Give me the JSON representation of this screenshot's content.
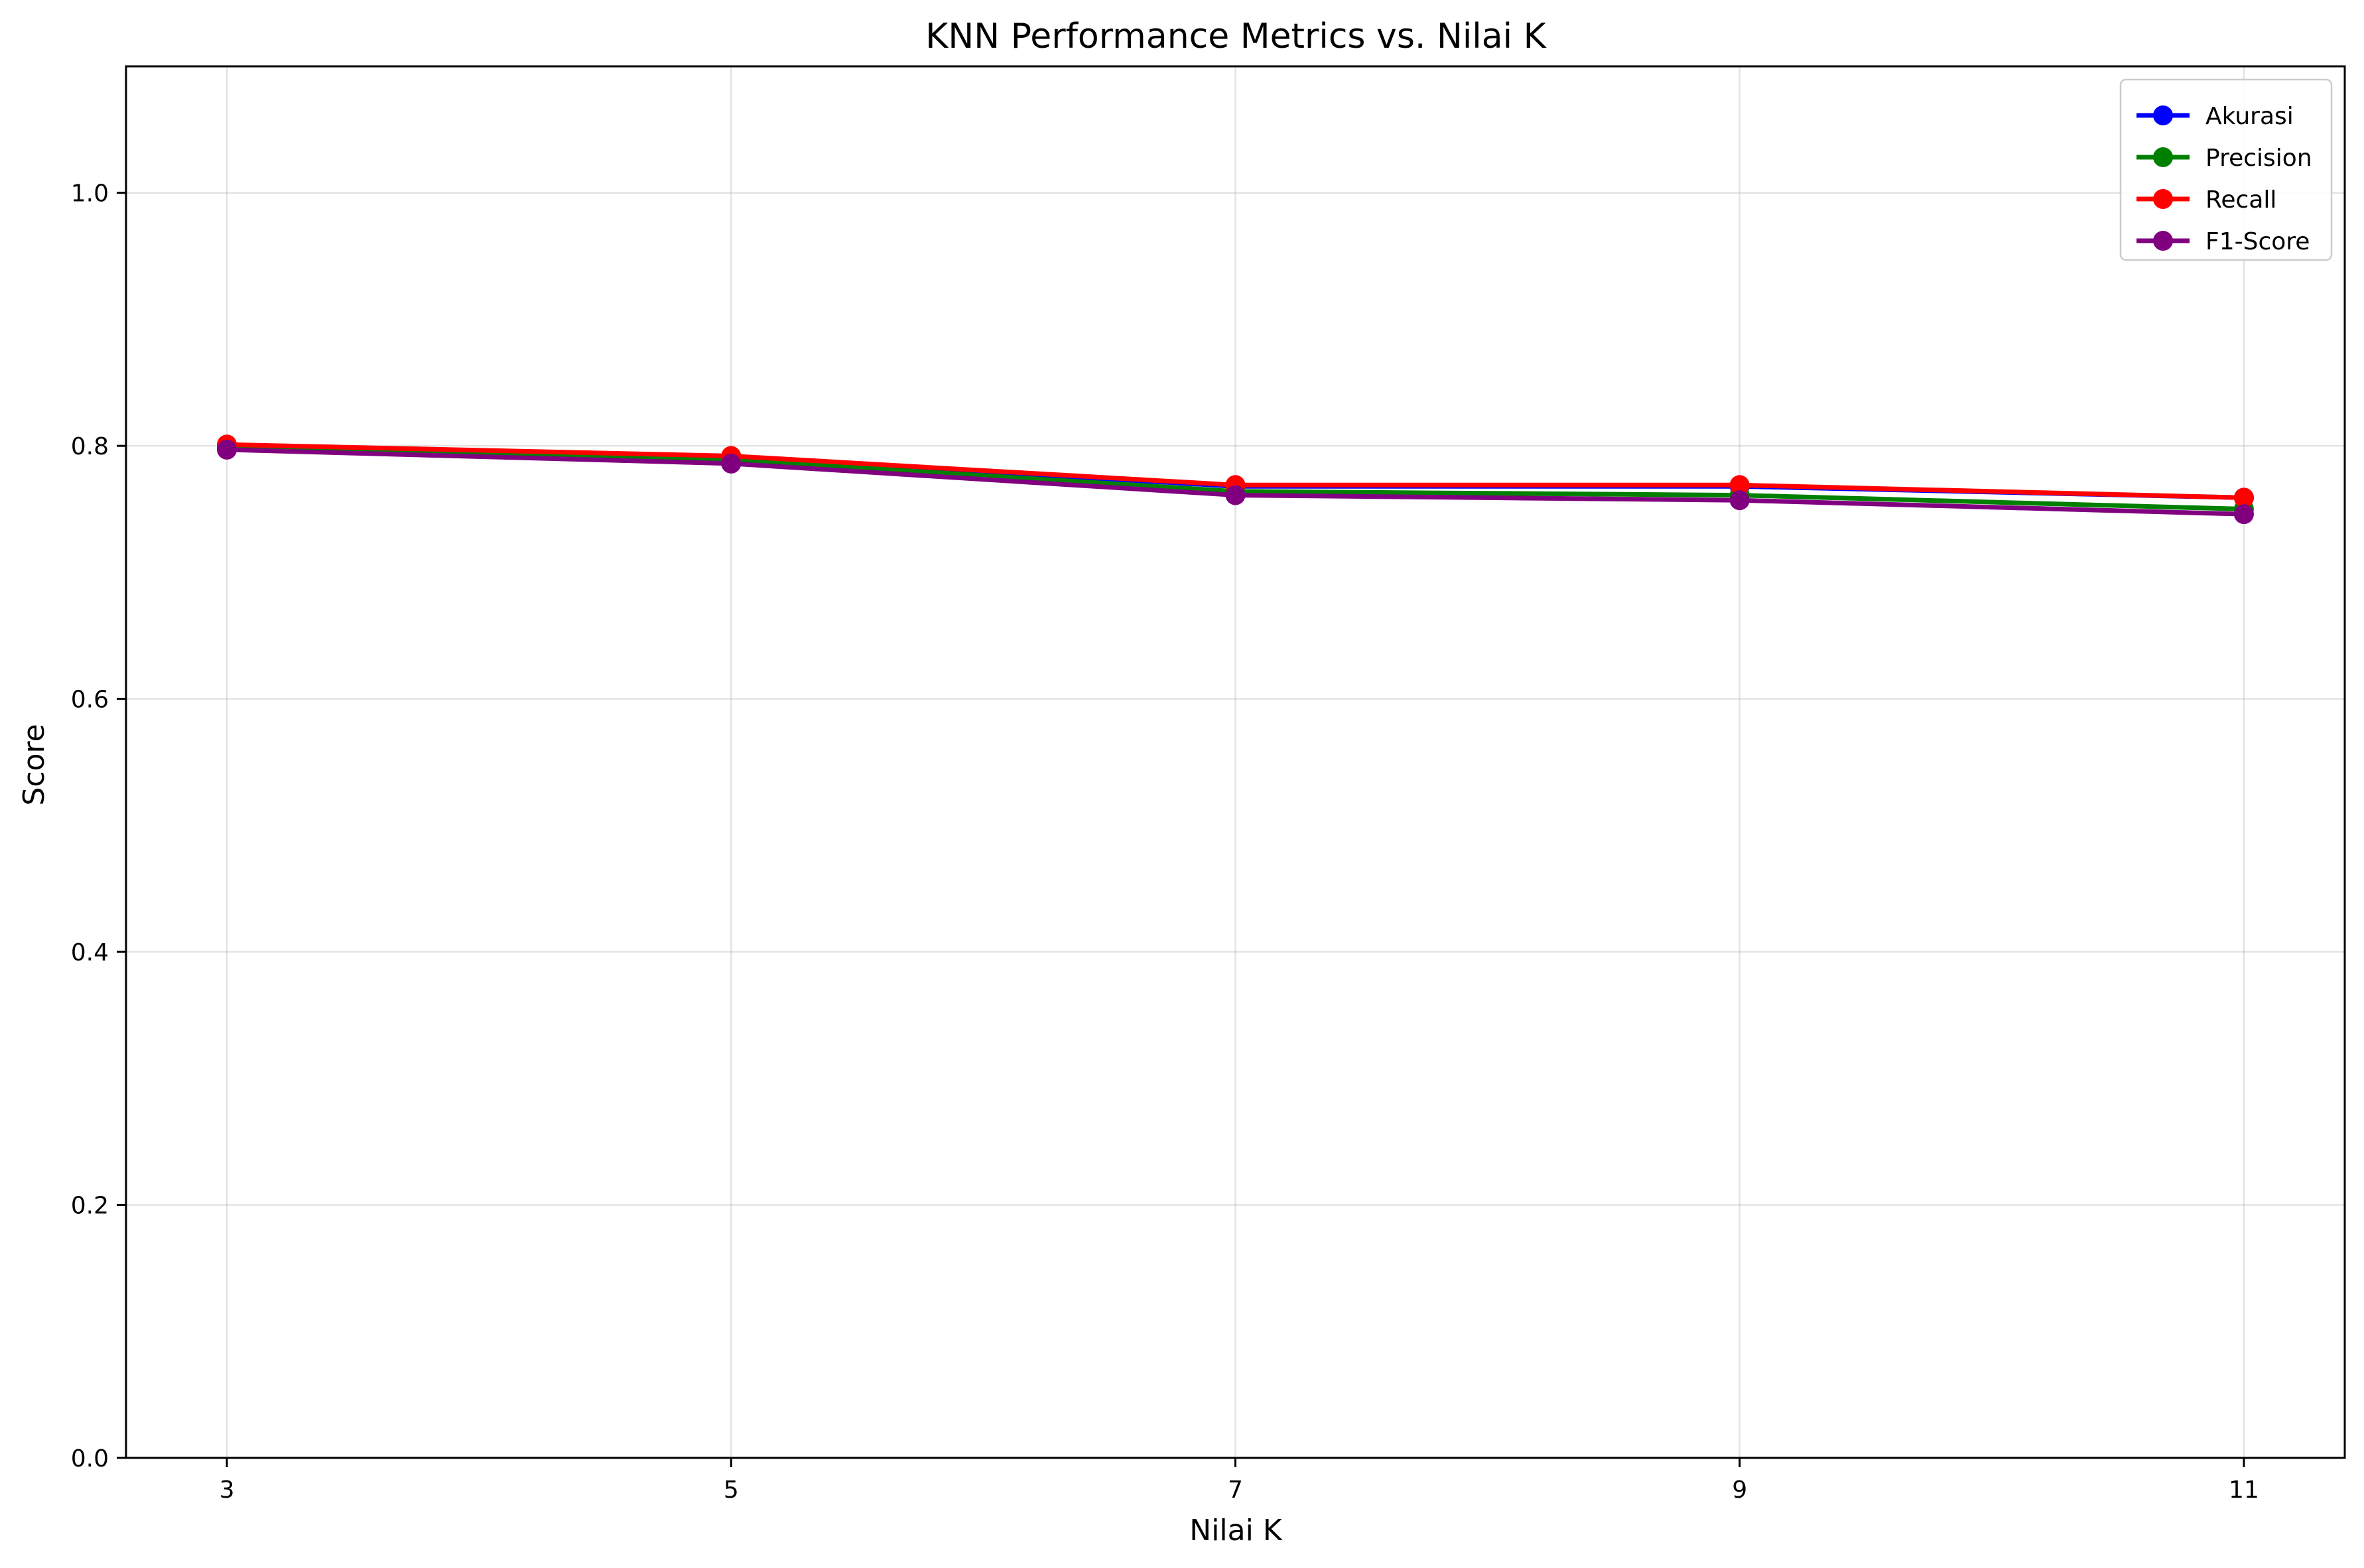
{
  "chart_data": {
    "type": "line",
    "title": "KNN Performance Metrics vs. Nilai K",
    "xlabel": "Nilai K",
    "ylabel": "Score",
    "x": [
      3,
      5,
      7,
      9,
      11
    ],
    "xlim": [
      2.6,
      11.4
    ],
    "ylim": [
      0,
      1.1
    ],
    "xticks": [
      "3",
      "5",
      "7",
      "9",
      "11"
    ],
    "yticks": [
      "0.0",
      "0.2",
      "0.4",
      "0.6",
      "0.8",
      "1.0"
    ],
    "grid": true,
    "legend_position": "top-right",
    "series": [
      {
        "name": "Akurasi",
        "color": "#0000ff",
        "values": [
          0.8,
          0.791,
          0.768,
          0.768,
          0.759
        ]
      },
      {
        "name": "Precision",
        "color": "#008000",
        "values": [
          0.798,
          0.789,
          0.764,
          0.761,
          0.75
        ]
      },
      {
        "name": "Recall",
        "color": "#ff0000",
        "values": [
          0.801,
          0.792,
          0.769,
          0.769,
          0.759
        ]
      },
      {
        "name": "F1-Score",
        "color": "#800080",
        "values": [
          0.797,
          0.786,
          0.761,
          0.757,
          0.746
        ]
      }
    ]
  }
}
